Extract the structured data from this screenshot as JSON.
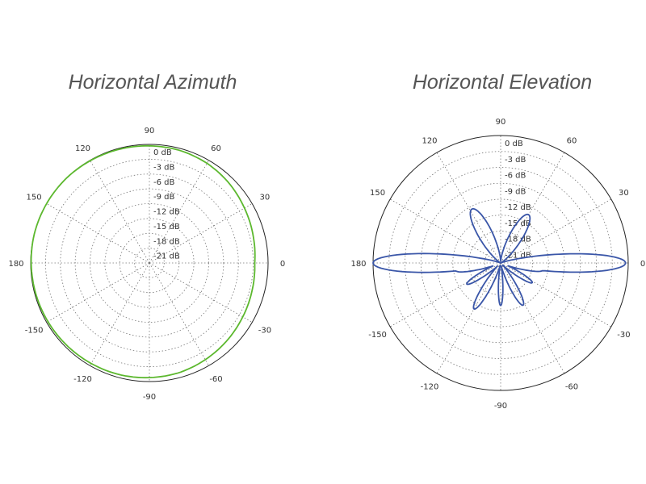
{
  "chart_data": [
    {
      "type": "polar",
      "title": "Horizontal Azimuth",
      "angle_ticks": [
        "0",
        "30",
        "60",
        "90",
        "120",
        "150",
        "180",
        "-150",
        "-120",
        "-90",
        "-60",
        "-30"
      ],
      "radial_ticks": [
        "0 dB",
        "-3 dB",
        "-6 dB",
        "-9 dB",
        "-12 dB",
        "-15 dB",
        "-18 dB",
        "-21 dB"
      ],
      "radial_range": [
        -24,
        0
      ],
      "series_color": "#5cb82e",
      "series": [
        {
          "angle_deg": [
            0,
            15,
            30,
            45,
            60,
            75,
            90,
            105,
            120,
            135,
            150,
            165,
            180,
            195,
            210,
            225,
            240,
            255,
            270,
            285,
            300,
            315,
            330,
            345,
            360
          ],
          "gain_db": [
            -2.7,
            -2.3,
            -1.8,
            -1.2,
            -0.7,
            -0.4,
            -0.3,
            -0.2,
            -0.1,
            0,
            0,
            0,
            -0.1,
            -0.2,
            -0.3,
            -0.4,
            -0.5,
            -0.6,
            -0.8,
            -1.0,
            -1.4,
            -1.8,
            -2.2,
            -2.5,
            -2.7
          ]
        }
      ]
    },
    {
      "type": "polar",
      "title": "Horizontal Elevation",
      "angle_ticks": [
        "0",
        "30",
        "60",
        "90",
        "120",
        "150",
        "180",
        "-150",
        "-120",
        "-90",
        "-60",
        "-30"
      ],
      "radial_ticks": [
        "0 dB",
        "-3 dB",
        "-6 dB",
        "-9 dB",
        "-12 dB",
        "-15 dB",
        "-18 dB",
        "-21 dB"
      ],
      "radial_range": [
        -24,
        0
      ],
      "series_color": "#3a56a8",
      "series": [
        {
          "lobes": [
            {
              "center_deg": 0,
              "peak_db": -0.5,
              "width_deg": 7
            },
            {
              "center_deg": 180,
              "peak_db": 0,
              "width_deg": 7
            },
            {
              "center_deg": 60,
              "peak_db": -13.5,
              "width_deg": 11
            },
            {
              "center_deg": 118,
              "peak_db": -12.5,
              "width_deg": 11
            },
            {
              "center_deg": -10,
              "peak_db": -16,
              "width_deg": 6
            },
            {
              "center_deg": 190,
              "peak_db": -15.5,
              "width_deg": 6
            },
            {
              "center_deg": -32,
              "peak_db": -17,
              "width_deg": 6
            },
            {
              "center_deg": 212,
              "peak_db": -16.5,
              "width_deg": 6
            },
            {
              "center_deg": -62,
              "peak_db": -15,
              "width_deg": 7
            },
            {
              "center_deg": 240,
              "peak_db": -14,
              "width_deg": 7
            },
            {
              "center_deg": -90,
              "peak_db": -16,
              "width_deg": 5
            }
          ]
        }
      ]
    }
  ]
}
